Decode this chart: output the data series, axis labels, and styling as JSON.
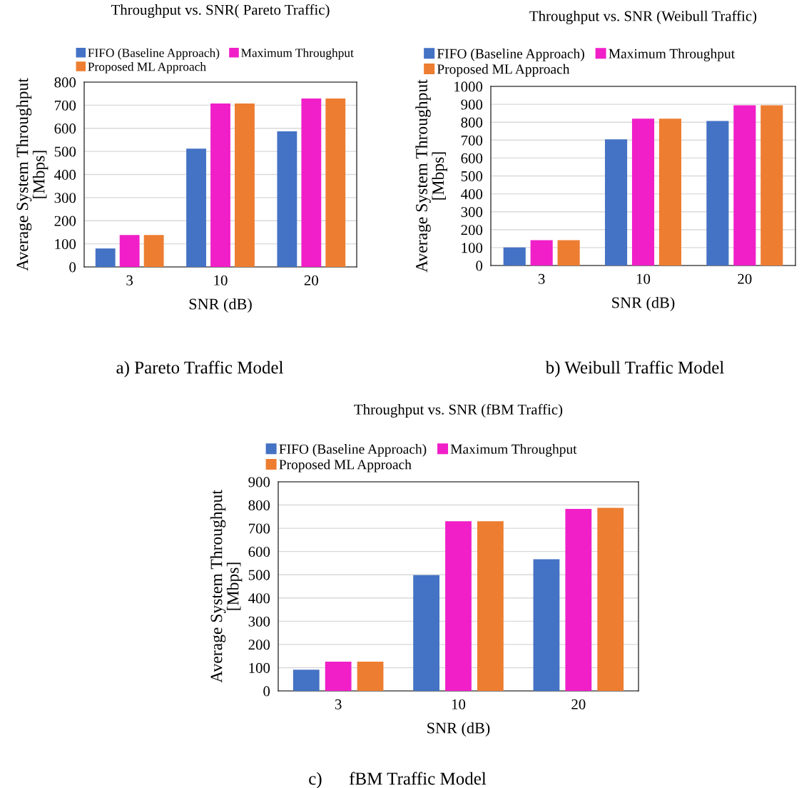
{
  "chart_data": [
    {
      "type": "bar",
      "title": "Throughput vs. SNR( Pareto Traffic)",
      "xlabel": "SNR (dB)",
      "ylabel": "Average System Throughput\n[Mbps]",
      "categories": [
        "3",
        "10",
        "20"
      ],
      "series": [
        {
          "name": "FIFO (Baseline Approach)",
          "color": "#4472c4",
          "values": [
            80,
            512,
            587
          ]
        },
        {
          "name": "Maximum Throughput",
          "color": "#f01fc8",
          "values": [
            138,
            707,
            729
          ]
        },
        {
          "name": "Proposed ML Approach",
          "color": "#ed7d31",
          "values": [
            138,
            707,
            729
          ]
        }
      ],
      "ylim": [
        0,
        800
      ],
      "yticks": [
        0,
        100,
        200,
        300,
        400,
        500,
        600,
        700,
        800
      ],
      "grid": "y",
      "legend": "top left",
      "annotations": [
        "a) Pareto Traffic Model"
      ]
    },
    {
      "type": "bar",
      "title": "Throughput vs. SNR (Weibull Traffic)",
      "xlabel": "SNR (dB)",
      "ylabel": "Average System Throughput\n[Mbps]",
      "categories": [
        "3",
        "10",
        "20"
      ],
      "series": [
        {
          "name": "FIFO (Baseline Approach)",
          "color": "#4472c4",
          "values": [
            101,
            704,
            807
          ]
        },
        {
          "name": "Maximum Throughput",
          "color": "#f01fc8",
          "values": [
            141,
            820,
            894
          ]
        },
        {
          "name": "Proposed ML Approach",
          "color": "#ed7d31",
          "values": [
            141,
            820,
            894
          ]
        }
      ],
      "ylim": [
        0,
        1000
      ],
      "yticks": [
        0,
        100,
        200,
        300,
        400,
        500,
        600,
        700,
        800,
        900,
        1000
      ],
      "grid": "y",
      "legend": "top left",
      "annotations": [
        "b) Weibull Traffic Model"
      ]
    },
    {
      "type": "bar",
      "title": "Throughput vs. SNR (fBM Traffic)",
      "xlabel": "SNR (dB)",
      "ylabel": "Average System Throughput\n[Mbps]",
      "categories": [
        "3",
        "10",
        "20"
      ],
      "series": [
        {
          "name": "FIFO (Baseline Approach)",
          "color": "#4472c4",
          "values": [
            91,
            498,
            567
          ]
        },
        {
          "name": "Maximum Throughput",
          "color": "#f01fc8",
          "values": [
            126,
            730,
            783
          ]
        },
        {
          "name": "Proposed ML Approach",
          "color": "#ed7d31",
          "values": [
            126,
            730,
            788
          ]
        }
      ],
      "ylim": [
        0,
        900
      ],
      "yticks": [
        0,
        100,
        200,
        300,
        400,
        500,
        600,
        700,
        800,
        900
      ],
      "grid": "y",
      "legend": "top left",
      "annotations": [
        "c)      fBM Traffic Model"
      ]
    }
  ]
}
